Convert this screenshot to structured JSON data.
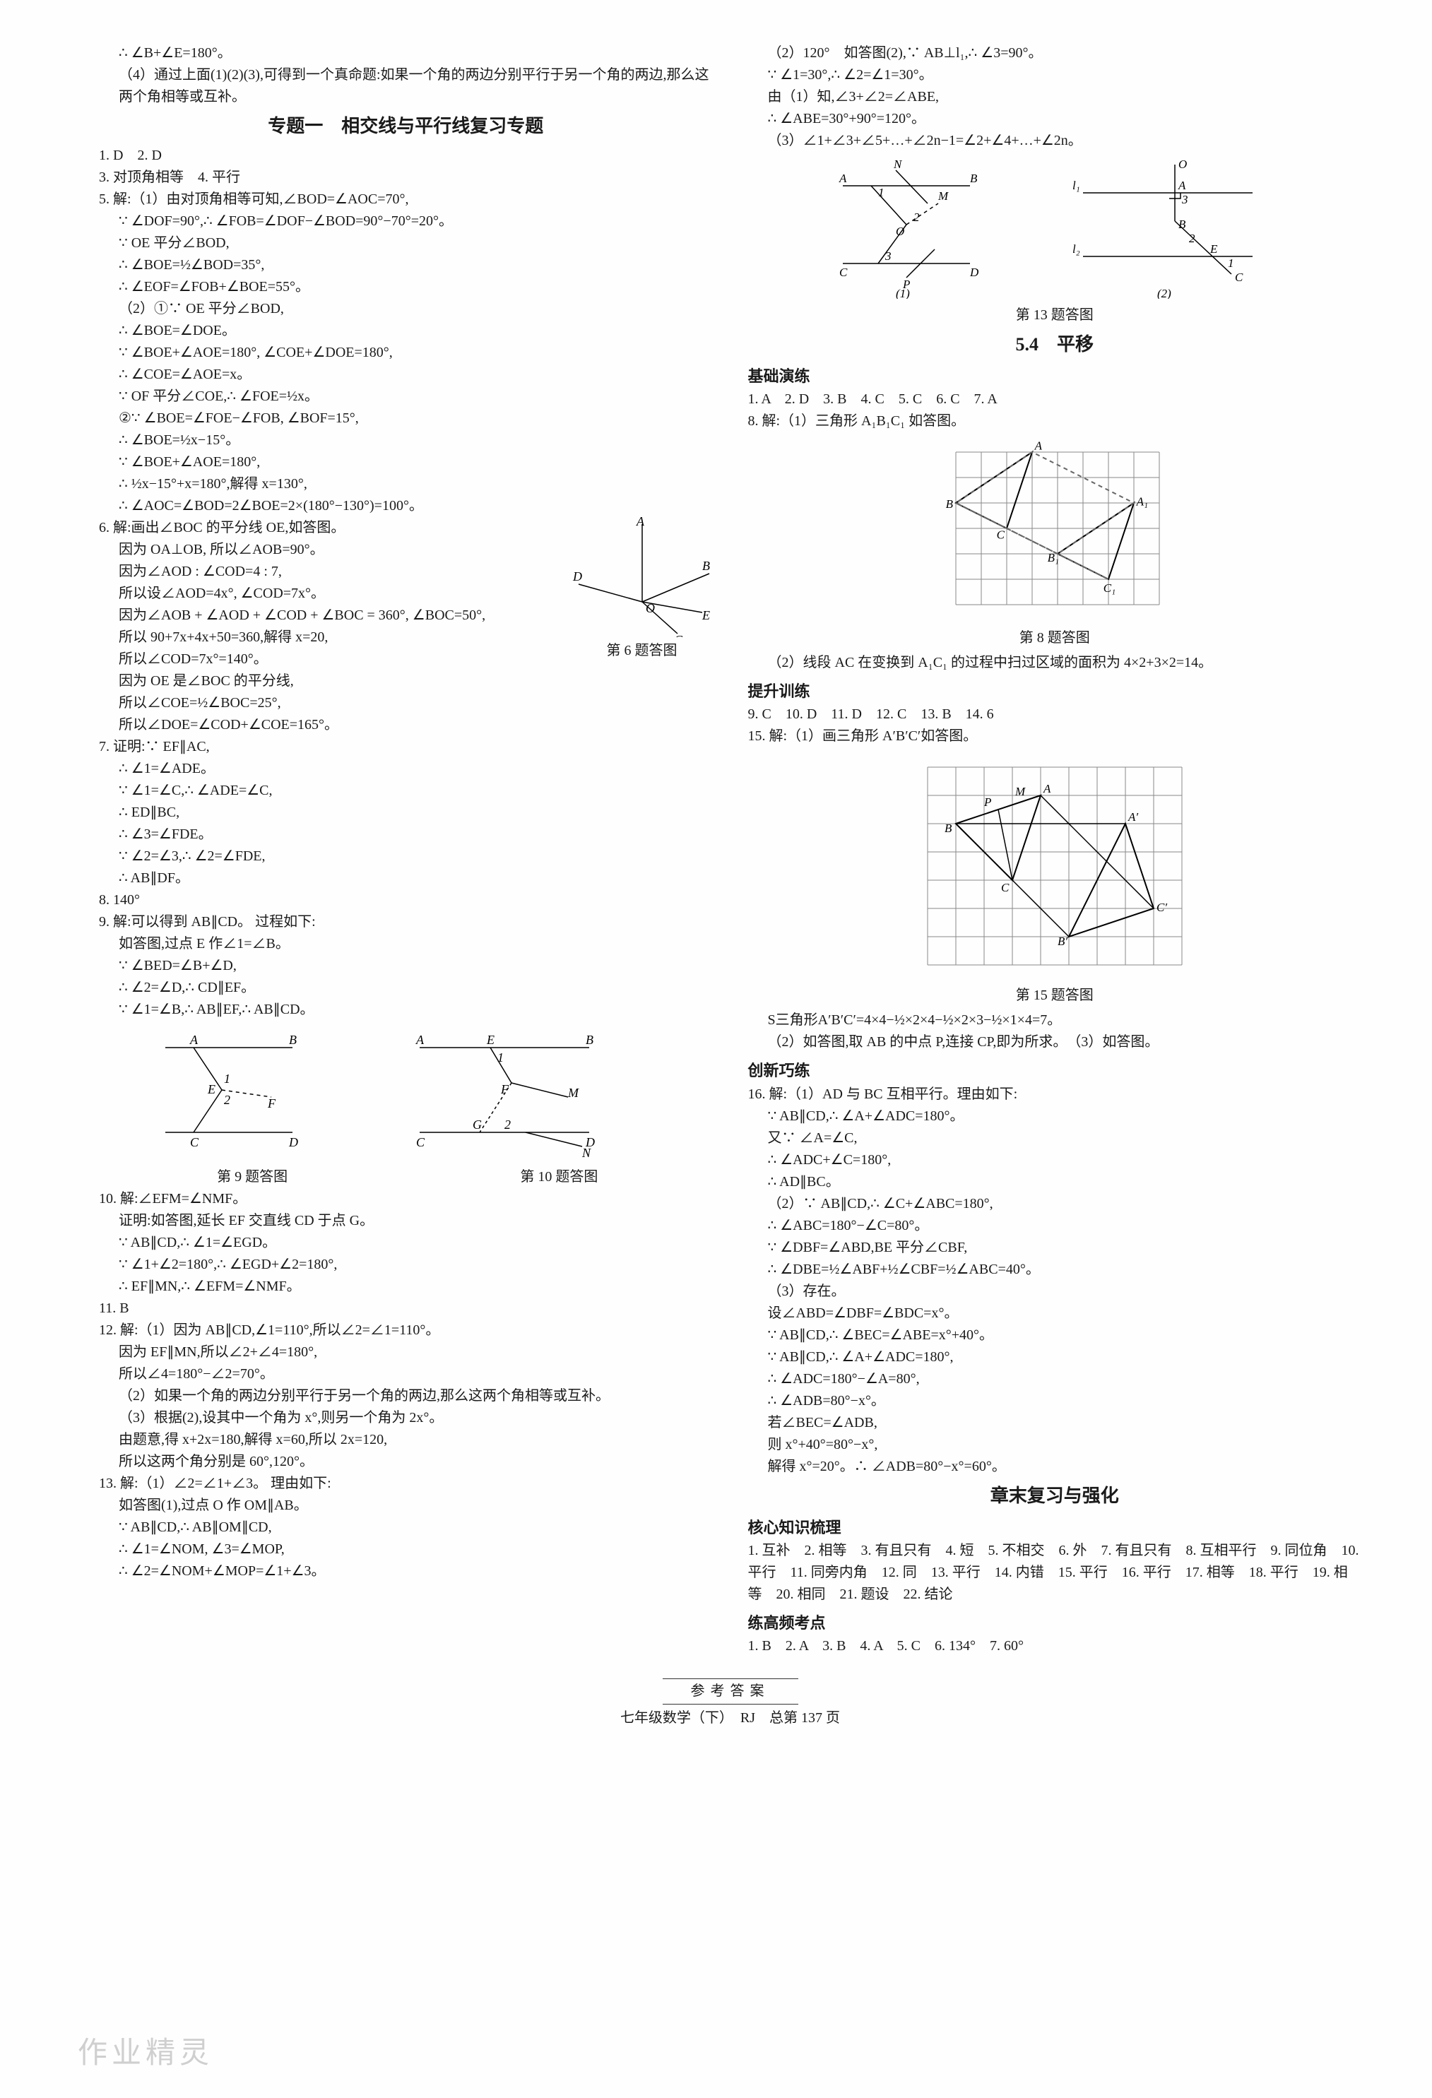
{
  "left": {
    "pre": "∴ ∠B+∠E=180°。",
    "pre2": "（4）通过上面(1)(2)(3),可得到一个真命题:如果一个角的两边分别平行于另一个角的两边,那么这两个角相等或互补。",
    "title1": "专题一　相交线与平行线复习专题",
    "q1": "1. D　2. D",
    "q3": "3. 对顶角相等　4. 平行",
    "q5_head": "5. 解:（1）由对顶角相等可知,∠BOD=∠AOC=70°,",
    "q5_1": "∵ ∠DOF=90°,∴ ∠FOB=∠DOF−∠BOD=90°−70°=20°。",
    "q5_2": "∵ OE 平分∠BOD,",
    "q5_3": "∴ ∠BOE=½∠BOD=35°,",
    "q5_4": "∴ ∠EOF=∠FOB+∠BOE=55°。",
    "q5_5": "（2）①∵ OE 平分∠BOD,",
    "q5_6": "∴ ∠BOE=∠DOE。",
    "q5_7": "∵ ∠BOE+∠AOE=180°, ∠COE+∠DOE=180°,",
    "q5_8": "∴ ∠COE=∠AOE=x。",
    "q5_9": "∵ OF 平分∠COE,∴ ∠FOE=½x。",
    "q5_10": "②∵ ∠BOE=∠FOE−∠FOB, ∠BOF=15°,",
    "q5_11": "∴ ∠BOE=½x−15°。",
    "q5_12": "∵ ∠BOE+∠AOE=180°,",
    "q5_13": "∴ ½x−15°+x=180°,解得 x=130°,",
    "q5_14": "∴ ∠AOC=∠BOD=2∠BOE=2×(180°−130°)=100°。",
    "q6_head": "6. 解:画出∠BOC 的平分线 OE,如答图。",
    "q6_1": "因为 OA⊥OB, 所以∠AOB=90°。",
    "q6_2": "因为∠AOD : ∠COD=4 : 7,",
    "q6_3": "所以设∠AOD=4x°, ∠COD=7x°。",
    "q6_4": "因为∠AOB + ∠AOD + ∠COD + ∠BOC = 360°, ∠BOC=50°,",
    "q6_5": "所以 90+7x+4x+50=360,解得 x=20,",
    "q6_6": "所以∠COD=7x°=140°。",
    "q6_7": "因为 OE 是∠BOC 的平分线,",
    "q6_8": "所以∠COE=½∠BOC=25°,",
    "q6_9": "所以∠DOE=∠COD+∠COE=165°。",
    "q6_fig": "第 6 题答图",
    "q7_head": "7. 证明:∵ EF∥AC,",
    "q7_1": "∴ ∠1=∠ADE。",
    "q7_2": "∵ ∠1=∠C,∴ ∠ADE=∠C,",
    "q7_3": "∴ ED∥BC,",
    "q7_4": "∴ ∠3=∠FDE。",
    "q7_5": "∵ ∠2=∠3,∴ ∠2=∠FDE,",
    "q7_6": "∴ AB∥DF。",
    "q8": "8. 140°",
    "q9_head": "9. 解:可以得到 AB∥CD。 过程如下:",
    "q9_1": "如答图,过点 E 作∠1=∠B。",
    "q9_2": "∵ ∠BED=∠B+∠D,",
    "q9_3": "∴ ∠2=∠D,∴ CD∥EF。",
    "q9_4": "∵ ∠1=∠B,∴ AB∥EF,∴ AB∥CD。",
    "fig9_label": "第 9 题答图",
    "fig10_label": "第 10 题答图",
    "q10_head": "10. 解:∠EFM=∠NMF。",
    "q10_1": "证明:如答图,延长 EF 交直线 CD 于点 G。",
    "q10_2": "∵ AB∥CD,∴ ∠1=∠EGD。",
    "q10_3": "∵ ∠1+∠2=180°,∴ ∠EGD+∠2=180°,",
    "q10_4": "∴ EF∥MN,∴ ∠EFM=∠NMF。",
    "q11": "11. B",
    "q12_head": "12. 解:（1）因为 AB∥CD,∠1=110°,所以∠2=∠1=110°。",
    "q12_1": "因为 EF∥MN,所以∠2+∠4=180°,",
    "q12_2": "所以∠4=180°−∠2=70°。",
    "q12_3": "（2）如果一个角的两边分别平行于另一个角的两边,那么这两个角相等或互补。",
    "q12_4": "（3）根据(2),设其中一个角为 x°,则另一个角为 2x°。",
    "q12_5": "由题意,得  x+2x=180,解得 x=60,所以 2x=120,",
    "q12_6": "所以这两个角分别是 60°,120°。",
    "q13_head": "13. 解:（1）∠2=∠1+∠3。 理由如下:",
    "q13_1": "如答图(1),过点 O 作 OM∥AB。",
    "q13_2": "∵ AB∥CD,∴ AB∥OM∥CD,",
    "q13_3": "∴ ∠1=∠NOM, ∠3=∠MOP,",
    "q13_4": "∴ ∠2=∠NOM+∠MOP=∠1+∠3。"
  },
  "right": {
    "r1": "（2）120°　如答图(2),∵ AB⊥l₁,∴ ∠3=90°。",
    "r2": "∵ ∠1=30°,∴ ∠2=∠1=30°。",
    "r3": "由（1）知,∠3+∠2=∠ABE,",
    "r4": "∴ ∠ABE=30°+90°=120°。",
    "r5": "（3）∠1+∠3+∠5+…+∠2n−1=∠2+∠4+…+∠2n。",
    "fig13_label": "第 13 题答图",
    "title54": "5.4　平移",
    "basic": "基础演练",
    "b1": "1. A　2. D　3. B　4. C　5. C　6. C　7. A",
    "b8_head": "8. 解:（1）三角形 A₁B₁C₁ 如答图。",
    "fig8_label": "第 8 题答图",
    "b8_2": "（2）线段 AC 在变换到 A₁C₁ 的过程中扫过区域的面积为 4×2+3×2=14。",
    "upgrade": "提升训练",
    "u1": "9. C　10. D　11. D　12. C　13. B　14. 6",
    "u15_head": "15. 解:（1）画三角形 A′B′C′如答图。",
    "fig15_label": "第 15 题答图",
    "u15_s": "S三角形A′B′C′=4×4−½×2×4−½×2×3−½×1×4=7。",
    "u15_2": "（2）如答图,取 AB 的中点 P,连接 CP,即为所求。　（3）如答图。",
    "innov": "创新巧练",
    "q16_head": "16. 解:（1）AD 与 BC 互相平行。理由如下:",
    "q16_1": "∵ AB∥CD,∴ ∠A+∠ADC=180°。",
    "q16_2": "又∵ ∠A=∠C,",
    "q16_3": "∴ ∠ADC+∠C=180°,",
    "q16_4": "∴ AD∥BC。",
    "q16_5": "（2）∵ AB∥CD,∴ ∠C+∠ABC=180°,",
    "q16_6": "∴ ∠ABC=180°−∠C=80°。",
    "q16_7": "∵ ∠DBF=∠ABD,BE 平分∠CBF,",
    "q16_8": "∴ ∠DBE=½∠ABF+½∠CBF=½∠ABC=40°。",
    "q16_9": "（3）存在。",
    "q16_10": "设∠ABD=∠DBF=∠BDC=x°。",
    "q16_11": "∵ AB∥CD,∴ ∠BEC=∠ABE=x°+40°。",
    "q16_12": "∵ AB∥CD,∴ ∠A+∠ADC=180°,",
    "q16_13": "∴ ∠ADC=180°−∠A=80°,",
    "q16_14": "∴ ∠ADB=80°−x°。",
    "q16_15": "若∠BEC=∠ADB,",
    "q16_16": "则 x°+40°=80°−x°,",
    "q16_17": "解得 x°=20°。∴ ∠ADB=80°−x°=60°。",
    "chapter_end": "章末复习与强化",
    "core": "核心知识梳理",
    "core_ans": "1. 互补　2. 相等　3. 有且只有　4. 短　5. 不相交　6. 外　7. 有且只有　8. 互相平行　9. 同位角　10. 平行　11. 同旁内角　12. 同　13. 平行　14. 内错　15. 平行　16. 平行　17. 相等　18. 平行　19. 相等　20. 相同　21. 题设　22. 结论",
    "high": "练高频考点",
    "high_ans": "1. B　2. A　3. B　4. A　5. C　6. 134°　7. 60°"
  },
  "footer": {
    "top": "参考答案",
    "bot": "七年级数学（下）　RJ　总第 137 页"
  },
  "watermark": "作业精灵",
  "fig6": {
    "labels": {
      "A": "A",
      "B": "B",
      "C": "C",
      "D": "D",
      "E": "E",
      "O": "O"
    },
    "color": "#000"
  },
  "fig9": {
    "labels": {
      "A": "A",
      "B": "B",
      "C": "C",
      "D": "D",
      "E": "E",
      "F": "F",
      "1": "1",
      "2": "2"
    }
  },
  "fig10": {
    "labels": {
      "A": "A",
      "B": "B",
      "C": "C",
      "D": "D",
      "E": "E",
      "F": "F",
      "G": "G",
      "M": "M",
      "N": "N",
      "1": "1",
      "2": "2"
    }
  },
  "fig13": {
    "labels": {
      "A": "A",
      "B": "B",
      "C": "C",
      "D": "D",
      "M": "M",
      "N": "N",
      "O": "O",
      "P": "P",
      "E": "E",
      "l1": "l₁",
      "l2": "l₂",
      "1": "1",
      "2": "2",
      "3": "3"
    }
  },
  "fig8": {
    "labels": {
      "A": "A",
      "B": "B",
      "C": "C",
      "A1": "A₁",
      "B1": "B₁",
      "C1": "C₁"
    },
    "grid_color": "#888",
    "dashed": "#666",
    "solid": "#000",
    "rows": 6,
    "cols": 8
  },
  "fig15": {
    "labels": {
      "A": "A",
      "B": "B",
      "C": "C",
      "A1": "A′",
      "B1": "B′",
      "C1": "C′",
      "M": "M",
      "P": "P"
    },
    "grid_color": "#888",
    "solid": "#000",
    "rows": 7,
    "cols": 9
  }
}
